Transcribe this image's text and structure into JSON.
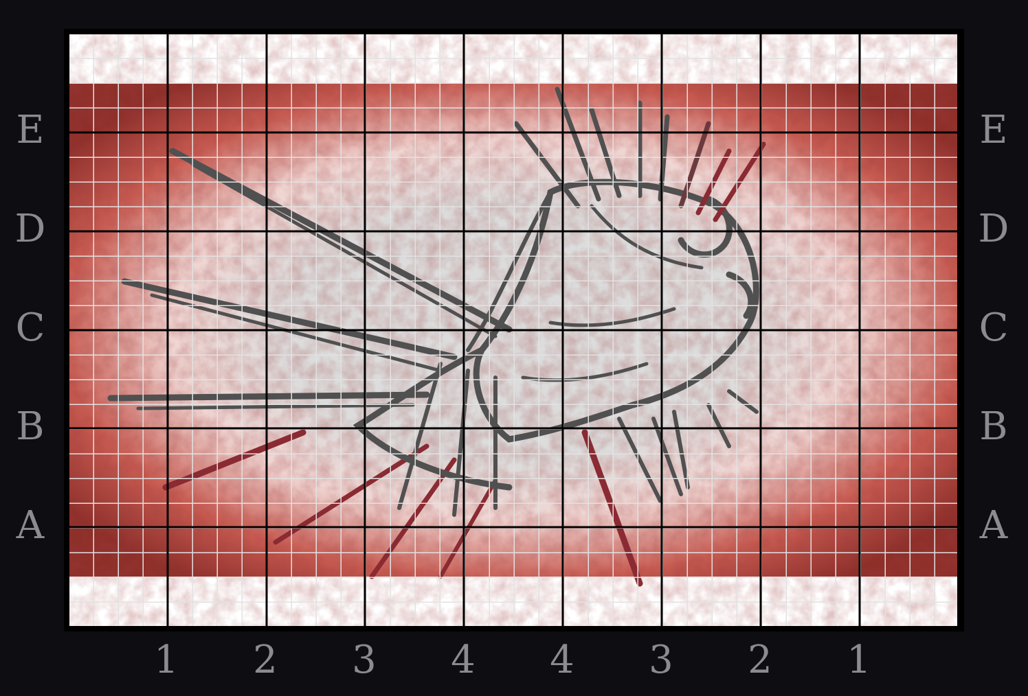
{
  "board": {
    "row_labels": [
      "E",
      "D",
      "C",
      "B",
      "A"
    ],
    "col_labels": [
      "1",
      "2",
      "3",
      "4",
      "4",
      "3",
      "2",
      "1"
    ],
    "artwork": "lionfish-illustration",
    "colors": {
      "background": "#0e0e12",
      "frame": "#000000",
      "field_edge": "#b84a42",
      "field_center": "#dcdcdc",
      "sketch": "#505050",
      "fin_accent": "#8a2a32",
      "label": "#8c8c8f"
    }
  }
}
